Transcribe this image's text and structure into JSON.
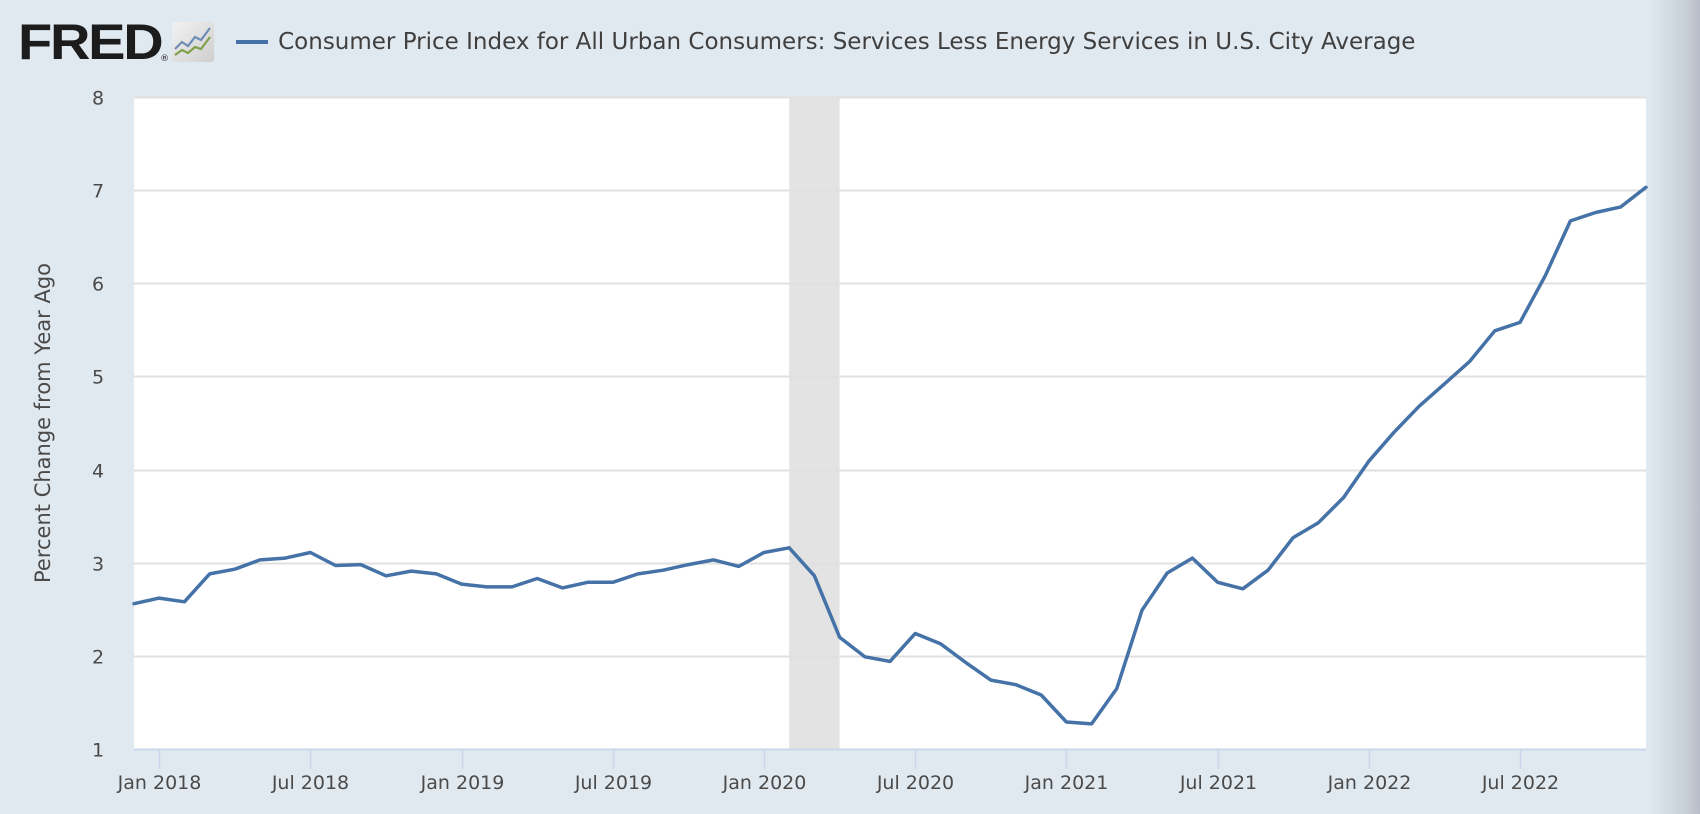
{
  "header": {
    "logo": "FRED",
    "logo_registered": "®",
    "logo_icon": "line-chart-icon"
  },
  "colors": {
    "series": "#4572a7",
    "recession": "#e3e3e3",
    "background": "#e1e9f0",
    "grid": "#e0e0e0"
  },
  "chart_data": {
    "type": "line",
    "title": "Consumer Price Index for All Urban Consumers: Services Less Energy Services in U.S. City Average",
    "xlabel": "",
    "ylabel": "Percent Change from Year Ago",
    "ylim": [
      1,
      8
    ],
    "yticks": [
      "1",
      "2",
      "3",
      "4",
      "5",
      "6",
      "7",
      "8"
    ],
    "xlim": [
      "2017-12",
      "2022-12"
    ],
    "xticks": [
      {
        "date": "2018-01",
        "label": "Jan 2018"
      },
      {
        "date": "2018-07",
        "label": "Jul 2018"
      },
      {
        "date": "2019-01",
        "label": "Jan 2019"
      },
      {
        "date": "2019-07",
        "label": "Jul 2019"
      },
      {
        "date": "2020-01",
        "label": "Jan 2020"
      },
      {
        "date": "2020-07",
        "label": "Jul 2020"
      },
      {
        "date": "2021-01",
        "label": "Jan 2021"
      },
      {
        "date": "2021-07",
        "label": "Jul 2021"
      },
      {
        "date": "2022-01",
        "label": "Jan 2022"
      },
      {
        "date": "2022-07",
        "label": "Jul 2022"
      }
    ],
    "grid": true,
    "legend": "top-left",
    "recessions": [
      {
        "start": "2020-02",
        "end": "2020-04"
      }
    ],
    "series": [
      {
        "name": "Consumer Price Index for All Urban Consumers: Services Less Energy Services in U.S. City Average",
        "start": "2017-12",
        "frequency": "monthly",
        "values": [
          2.56,
          2.62,
          2.58,
          2.88,
          2.93,
          3.03,
          3.05,
          3.11,
          2.97,
          2.98,
          2.86,
          2.91,
          2.88,
          2.77,
          2.74,
          2.74,
          2.83,
          2.73,
          2.79,
          2.79,
          2.88,
          2.92,
          2.98,
          3.03,
          2.96,
          3.11,
          3.16,
          2.86,
          2.2,
          1.99,
          1.94,
          2.24,
          2.13,
          1.93,
          1.74,
          1.69,
          1.58,
          1.29,
          1.27,
          1.65,
          2.49,
          2.89,
          3.05,
          2.79,
          2.72,
          2.92,
          3.27,
          3.43,
          3.7,
          4.09,
          4.4,
          4.68,
          4.92,
          5.16,
          5.49,
          5.58,
          6.08,
          6.67,
          6.76,
          6.82,
          7.03
        ]
      }
    ]
  }
}
